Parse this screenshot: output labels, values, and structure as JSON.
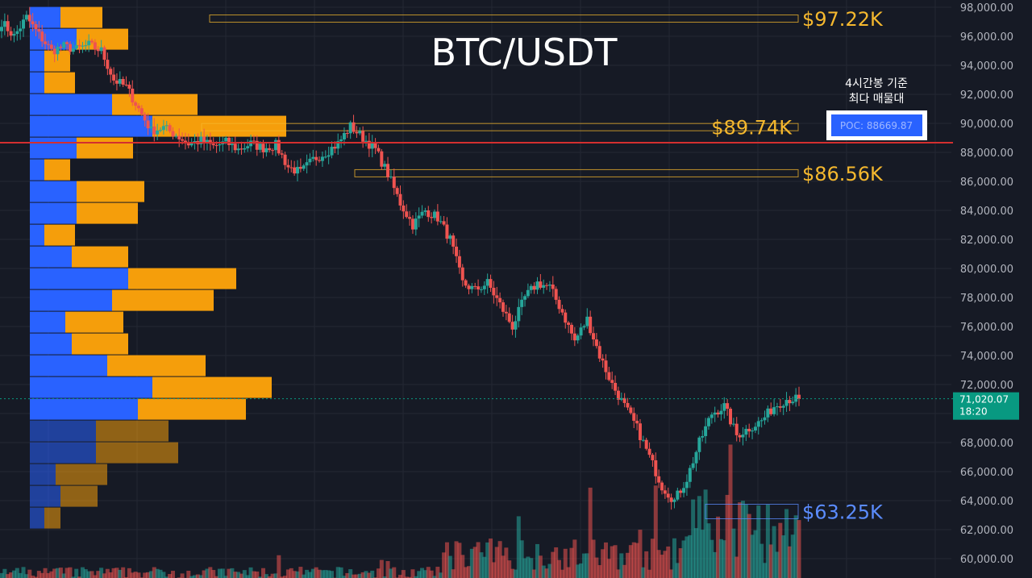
{
  "chart_data": {
    "type": "candlestick",
    "title": "BTC/USDT",
    "ylim": [
      59000,
      99000
    ],
    "yticks": [
      {
        "value": 98000,
        "label": "98,000.00"
      },
      {
        "value": 96000,
        "label": "96,000.00"
      },
      {
        "value": 94000,
        "label": "94,000.00"
      },
      {
        "value": 92000,
        "label": "92,000.00"
      },
      {
        "value": 90000,
        "label": "90,000.00"
      },
      {
        "value": 88000,
        "label": "88,000.00"
      },
      {
        "value": 86000,
        "label": "86,000.00"
      },
      {
        "value": 84000,
        "label": "84,000.00"
      },
      {
        "value": 82000,
        "label": "82,000.00"
      },
      {
        "value": 80000,
        "label": "80,000.00"
      },
      {
        "value": 78000,
        "label": "78,000.00"
      },
      {
        "value": 76000,
        "label": "76,000.00"
      },
      {
        "value": 74000,
        "label": "74,000.00"
      },
      {
        "value": 72000,
        "label": "72,000.00"
      },
      {
        "value": 70000,
        "label": "70,000.00"
      },
      {
        "value": 68000,
        "label": "68,000.00"
      },
      {
        "value": 66000,
        "label": "66,000.00"
      },
      {
        "value": 64000,
        "label": "64,000.00"
      },
      {
        "value": 62000,
        "label": "62,000.00"
      },
      {
        "value": 60000,
        "label": "60,000.00"
      }
    ],
    "close_path": [
      97000,
      96000,
      97300,
      96100,
      95000,
      95300,
      95100,
      95400,
      95000,
      93000,
      92500,
      91000,
      89500,
      89700,
      89200,
      88600,
      88800,
      88400,
      88700,
      88200,
      88600,
      88300,
      88500,
      87000,
      86600,
      87500,
      88000,
      88600,
      89800,
      89000,
      88200,
      86500,
      84500,
      83000,
      84000,
      83500,
      82000,
      79000,
      78500,
      79000,
      77500,
      76000,
      78000,
      79000,
      78700,
      77000,
      75000,
      76500,
      74000,
      72000,
      70500,
      69000,
      67000,
      65000,
      64000,
      65500,
      68000,
      70000,
      70500,
      68500,
      69000,
      69500,
      70500,
      71000,
      71000
    ],
    "volume_profile": [
      {
        "price": 97300,
        "buy": 38,
        "sell": 52
      },
      {
        "price": 95800,
        "buy": 58,
        "sell": 64
      },
      {
        "price": 94300,
        "buy": 18,
        "sell": 32
      },
      {
        "price": 92800,
        "buy": 18,
        "sell": 38
      },
      {
        "price": 91300,
        "buy": 102,
        "sell": 106
      },
      {
        "price": 89800,
        "buy": 152,
        "sell": 166
      },
      {
        "price": 88300,
        "buy": 58,
        "sell": 70
      },
      {
        "price": 86800,
        "buy": 18,
        "sell": 32
      },
      {
        "price": 85300,
        "buy": 58,
        "sell": 84
      },
      {
        "price": 83800,
        "buy": 58,
        "sell": 76
      },
      {
        "price": 82300,
        "buy": 18,
        "sell": 38
      },
      {
        "price": 80800,
        "buy": 52,
        "sell": 70
      },
      {
        "price": 79300,
        "buy": 122,
        "sell": 134
      },
      {
        "price": 77800,
        "buy": 102,
        "sell": 126
      },
      {
        "price": 76300,
        "buy": 44,
        "sell": 72
      },
      {
        "price": 74800,
        "buy": 52,
        "sell": 70
      },
      {
        "price": 73300,
        "buy": 96,
        "sell": 122
      },
      {
        "price": 71800,
        "buy": 152,
        "sell": 148
      },
      {
        "price": 70300,
        "buy": 134,
        "sell": 134
      },
      {
        "price": 68800,
        "buy": 82,
        "sell": 90
      },
      {
        "price": 67300,
        "buy": 82,
        "sell": 102
      },
      {
        "price": 65800,
        "buy": 32,
        "sell": 64
      },
      {
        "price": 64300,
        "buy": 38,
        "sell": 46
      },
      {
        "price": 62800,
        "buy": 18,
        "sell": 20
      }
    ],
    "levels": [
      {
        "label": "$97.22K",
        "value": 97220,
        "color": "#f5b82e"
      },
      {
        "label": "$89.74K",
        "value": 89740,
        "color": "#f5b82e"
      },
      {
        "label": "$86.56K",
        "value": 86560,
        "color": "#f5b82e"
      },
      {
        "label": "$63.25K",
        "value": 63250,
        "color": "#5b8cff"
      }
    ],
    "poc": {
      "label": "POC: 88669.87",
      "value": 88669.87,
      "color": "#d32f2f"
    },
    "poc_note_line1": "4시간봉 기준",
    "poc_note_line2": "최다 매물대",
    "last_price": {
      "value": 71020.07,
      "label": "71,020.07",
      "countdown": "18:20",
      "color": "#089981"
    },
    "colors": {
      "up": "#26a69a",
      "down": "#ef5350",
      "profile_buy": "#2962ff",
      "profile_sell": "#f59e0b",
      "background": "#161a25",
      "grid": "#242833"
    }
  }
}
